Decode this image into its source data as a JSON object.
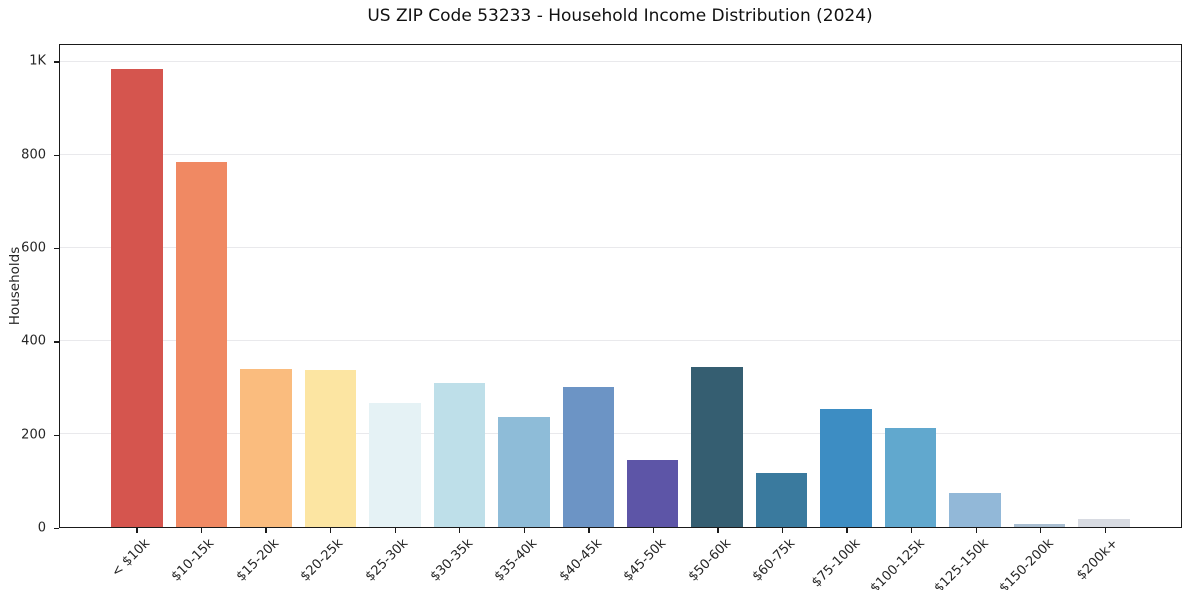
{
  "chart_data": {
    "type": "bar",
    "title": "US ZIP Code 53233 - Household Income Distribution (2024)",
    "xlabel": "",
    "ylabel": "Households",
    "categories": [
      "< $10k",
      "$10-15k",
      "$15-20k",
      "$20-25k",
      "$25-30k",
      "$30-35k",
      "$35-40k",
      "$40-45k",
      "$45-50k",
      "$50-60k",
      "$60-75k",
      "$75-100k",
      "$100-125k",
      "$125-150k",
      "$150-200k",
      "$200k+"
    ],
    "values": [
      985,
      785,
      340,
      338,
      267,
      310,
      237,
      302,
      145,
      345,
      116,
      253,
      212,
      73,
      7,
      17
    ],
    "bar_colors": [
      "#d5554e",
      "#f08963",
      "#fabc7e",
      "#fce5a2",
      "#e5f2f5",
      "#bedfe9",
      "#8ebcd8",
      "#6c94c5",
      "#5d55a7",
      "#355e71",
      "#3a7a9e",
      "#3d8dc3",
      "#61a8ce",
      "#92b8d8",
      "#aabfd2",
      "#d8dbe2"
    ],
    "ylim": [
      0,
      1037
    ],
    "yticks": [
      {
        "value": 0,
        "label": "0"
      },
      {
        "value": 200,
        "label": "200"
      },
      {
        "value": 400,
        "label": "400"
      },
      {
        "value": 600,
        "label": "600"
      },
      {
        "value": 800,
        "label": "800"
      },
      {
        "value": 1000,
        "label": "1K"
      }
    ],
    "grid": "horizontal",
    "legend": "none",
    "background_color": "#ffffff",
    "gridline_color": "#e9e9ec",
    "spine_color": "#1a1a1a",
    "text_color": "#262626"
  }
}
